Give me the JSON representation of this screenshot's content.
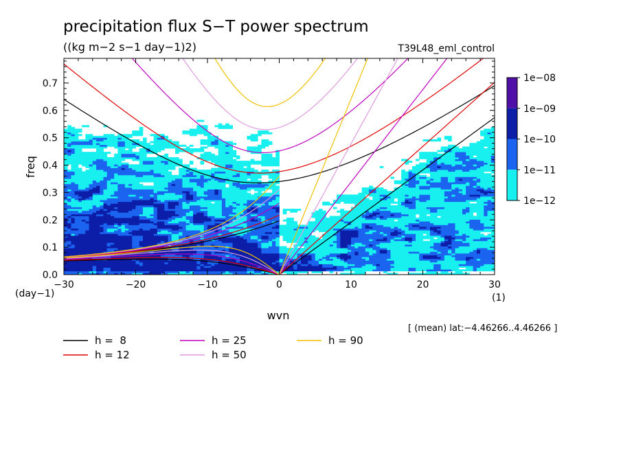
{
  "chart_data": {
    "type": "heatmap",
    "title": "precipitation flux S−T power spectrum",
    "subtitle": "((kg m−2 s−1 day−1)2)",
    "run_label": "T39L48_eml_control",
    "xlabel": "wvn",
    "ylabel": "freq",
    "x_unit": "(1)",
    "y_unit": "(day−1)",
    "xlim": [
      -30,
      30
    ],
    "ylim": [
      0,
      0.79
    ],
    "x_ticks": [
      "−30",
      "−20",
      "−10",
      "0",
      "10",
      "20",
      "30"
    ],
    "y_ticks": [
      "0.0",
      "0.1",
      "0.2",
      "0.3",
      "0.4",
      "0.5",
      "0.6",
      "0.7"
    ],
    "colorbar": {
      "labels": [
        "1e−08",
        "1e−09",
        "1e−10",
        "1e−11",
        "1e−12"
      ],
      "colors": [
        "#5010a8",
        "#0c1ea8",
        "#1a64f0",
        "#18f0f0"
      ]
    },
    "footnote": "[ (mean) lat:−4.46266..4.46266 ]",
    "dispersion_curves": [
      {
        "label": "h =  8",
        "h": 8,
        "color": "#000000"
      },
      {
        "label": "h = 12",
        "h": 12,
        "color": "#e00000"
      },
      {
        "label": "h = 25",
        "h": 25,
        "color": "#c000c0"
      },
      {
        "label": "h = 50",
        "h": 50,
        "color": "#e09ae0"
      },
      {
        "label": "h = 90",
        "h": 90,
        "color": "#f0c000"
      }
    ]
  }
}
